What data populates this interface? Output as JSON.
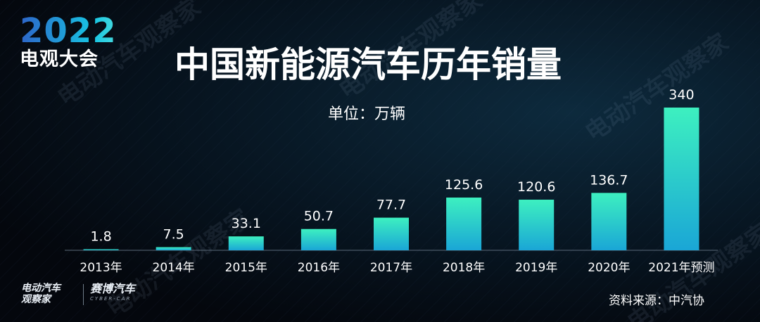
{
  "header": {
    "event_logo_year": "2022",
    "event_logo_name": "电观大会"
  },
  "watermark_text": "电动汽车观察家",
  "chart_data": {
    "type": "bar",
    "title": "中国新能源汽车历年销量",
    "unit_label": "单位：万辆",
    "categories": [
      "2013年",
      "2014年",
      "2015年",
      "2016年",
      "2017年",
      "2018年",
      "2019年",
      "2020年",
      "2021年预测"
    ],
    "values": [
      1.8,
      7.5,
      33.1,
      50.7,
      77.7,
      125.6,
      120.6,
      136.7,
      340
    ],
    "value_labels": [
      "1.8",
      "7.5",
      "33.1",
      "50.7",
      "77.7",
      "125.6",
      "120.6",
      "136.7",
      "340"
    ],
    "ylim": [
      0,
      340
    ],
    "grid": false,
    "bar_color_bottom": "#1aa6d6",
    "bar_color_top": "#3df0c0",
    "baseline_color": "#5b6a7a"
  },
  "footer": {
    "brand_left_line1": "电动汽车",
    "brand_left_line2": "观察家",
    "brand_right_name": "赛博汽车",
    "brand_right_sub": "CYBER-CAR",
    "source": "资料来源：中汽协"
  }
}
